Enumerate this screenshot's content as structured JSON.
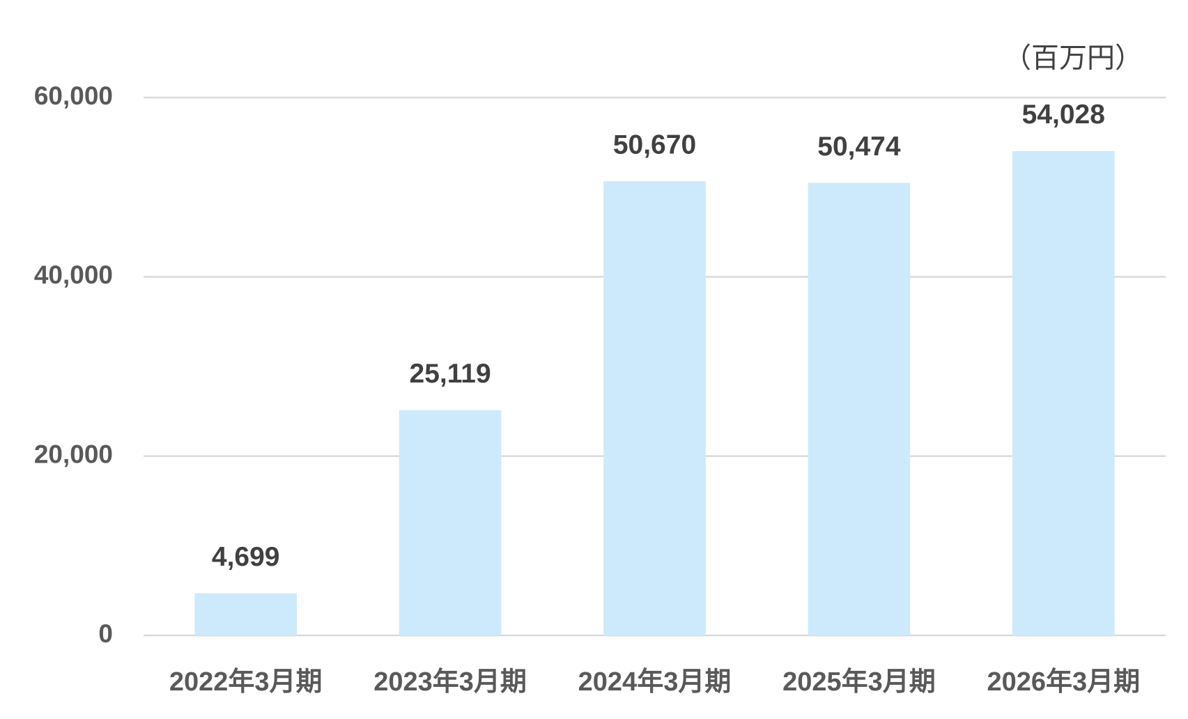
{
  "chart_data": {
    "type": "bar",
    "unit_label": "（百万円）",
    "categories": [
      "2022年3月期",
      "2023年3月期",
      "2024年3月期",
      "2025年3月期",
      "2026年3月期"
    ],
    "values": [
      4699,
      25119,
      50670,
      50474,
      54028
    ],
    "value_labels": [
      "4,699",
      "25,119",
      "50,670",
      "50,474",
      "54,028"
    ],
    "color": "#cdeafc",
    "ylim": [
      0,
      60000
    ],
    "yticks": [
      0,
      {
        "value": 20000,
        "label": "20,000"
      },
      {
        "value": 40000,
        "label": "40,000"
      },
      {
        "value": 60000,
        "label": "60,000"
      }
    ],
    "grid": true
  }
}
